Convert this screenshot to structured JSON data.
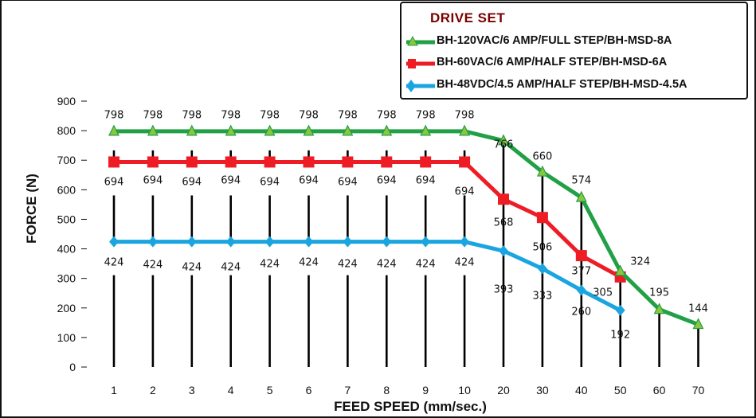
{
  "chart_data": {
    "type": "line",
    "categories": [
      "1",
      "2",
      "3",
      "4",
      "5",
      "6",
      "7",
      "8",
      "9",
      "10",
      "20",
      "30",
      "40",
      "50",
      "60",
      "70"
    ],
    "series": [
      {
        "name": "BH-120VAC/6 AMP/FULL STEP/BH-MSD-8A",
        "color": "#21a045",
        "marker": "triangle",
        "values": [
          798,
          798,
          798,
          798,
          798,
          798,
          798,
          798,
          798,
          798,
          766,
          660,
          574,
          324,
          195,
          144
        ]
      },
      {
        "name": "BH-60VAC/6 AMP/HALF STEP/BH-MSD-6A",
        "color": "#ee1c24",
        "marker": "square",
        "values": [
          694,
          694,
          694,
          694,
          694,
          694,
          694,
          694,
          694,
          694,
          568,
          506,
          377,
          305,
          null,
          null
        ]
      },
      {
        "name": "BH-48VDC/4.5 AMP/HALF STEP/BH-MSD-4.5A",
        "color": "#1ba5e0",
        "marker": "diamond",
        "values": [
          424,
          424,
          424,
          424,
          424,
          424,
          424,
          424,
          424,
          424,
          393,
          333,
          260,
          192,
          null,
          null
        ]
      }
    ],
    "data_labels": {
      "green": [
        "798",
        "798",
        "798",
        "798",
        "798",
        "798",
        "798",
        "798",
        "798",
        "798",
        "766",
        "660",
        "574",
        "324",
        "195",
        "144"
      ],
      "red": [
        "694",
        "694",
        "694",
        "694",
        "694",
        "694",
        "694",
        "694",
        "694",
        "694",
        "568",
        "506",
        "377",
        "305"
      ],
      "blue": [
        "424",
        "424",
        "424",
        "424",
        "424",
        "424",
        "424",
        "424",
        "424",
        "424",
        "393",
        "333",
        "260",
        "192"
      ]
    },
    "xlabel": "FEED SPEED (mm/sec.)",
    "ylabel": "FORCE (N)",
    "ylim": [
      0,
      900
    ],
    "yticks": [
      "0",
      "100",
      "200",
      "300",
      "400",
      "500",
      "600",
      "700",
      "800",
      "900"
    ],
    "legend_title": "DRIVE SET",
    "legend_position": "top-right",
    "grid": false,
    "drop_lines": true
  }
}
